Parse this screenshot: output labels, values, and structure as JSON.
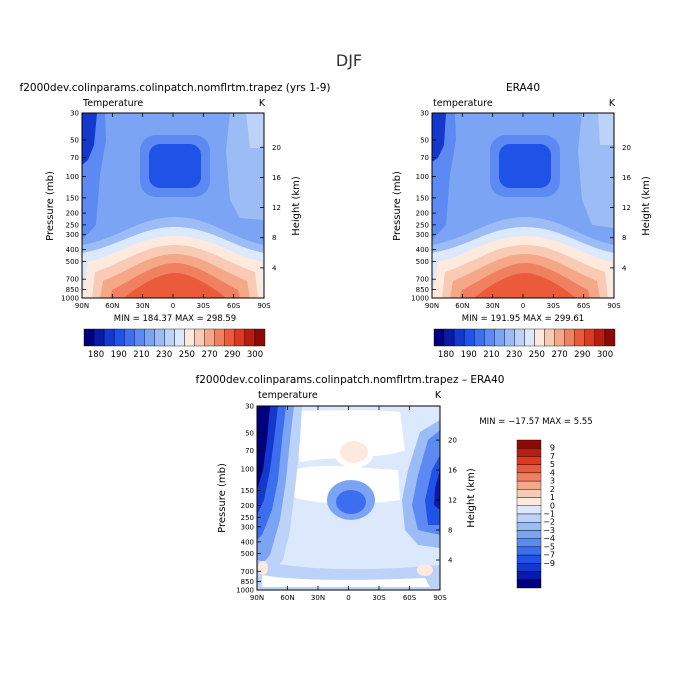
{
  "figure": {
    "supertitle": "DJF"
  },
  "palette_abs": [
    "#00007e",
    "#0a1aa8",
    "#1437cc",
    "#1f52e6",
    "#3d6ef0",
    "#5d89f2",
    "#7ca4f4",
    "#9cbcf6",
    "#bcd2f9",
    "#dce8fc",
    "#fde9de",
    "#f9cbb4",
    "#f4a887",
    "#ef8060",
    "#ea5a3b",
    "#db3a22",
    "#b81e10",
    "#8c0a05"
  ],
  "palette_diff": [
    "#00007e",
    "#0a1aa8",
    "#1437cc",
    "#1f52e6",
    "#3d6ef0",
    "#5d89f2",
    "#7ca4f4",
    "#9cbcf6",
    "#bcd2f9",
    "#dce8fc",
    "#fde9de",
    "#f9cbb4",
    "#f4a887",
    "#ef8060",
    "#ea5a3b",
    "#db3a22",
    "#b81e10",
    "#8c0a05"
  ],
  "chart_data": [
    {
      "type": "heatmap",
      "title": "f2000dev.colinparams.colinpatch.nomflrtm.trapez (yrs 1-9)",
      "field_label": "Temperature",
      "units": "K",
      "ylabel": "Pressure (mb)",
      "ylabel_right": "Height (km)",
      "x_ticks": [
        "90N",
        "60N",
        "30N",
        "0",
        "30S",
        "60S",
        "90S"
      ],
      "y_ticks": [
        "30",
        "50",
        "70",
        "100",
        "150",
        "200",
        "250",
        "300",
        "400",
        "500",
        "700",
        "850",
        "1000"
      ],
      "height_ticks": [
        "4",
        "8",
        "12",
        "16",
        "20"
      ],
      "min_max_text": "MIN = 184.37   MAX = 298.59",
      "min": 184.37,
      "max": 298.59,
      "colorbar_labels": [
        "180",
        "190",
        "210",
        "230",
        "250",
        "270",
        "290",
        "300"
      ]
    },
    {
      "type": "heatmap",
      "title": "ERA40",
      "field_label": "temperature",
      "units": "K",
      "ylabel": "Pressure (mb)",
      "ylabel_right": "Height (km)",
      "x_ticks": [
        "90N",
        "60N",
        "30N",
        "0",
        "30S",
        "60S",
        "90S"
      ],
      "y_ticks": [
        "30",
        "50",
        "70",
        "100",
        "150",
        "200",
        "250",
        "300",
        "400",
        "500",
        "700",
        "850",
        "1000"
      ],
      "height_ticks": [
        "4",
        "8",
        "12",
        "16",
        "20"
      ],
      "min_max_text": "MIN = 191.95   MAX = 299.61",
      "min": 191.95,
      "max": 299.61,
      "colorbar_labels": [
        "180",
        "190",
        "210",
        "230",
        "250",
        "270",
        "290",
        "300"
      ]
    },
    {
      "type": "heatmap",
      "title": "f2000dev.colinparams.colinpatch.nomflrtm.trapez – ERA40",
      "field_label": "temperature",
      "units": "K",
      "ylabel": "Pressure (mb)",
      "ylabel_right": "Height (km)",
      "x_ticks": [
        "90N",
        "60N",
        "30N",
        "0",
        "30S",
        "60S",
        "90S"
      ],
      "y_ticks": [
        "30",
        "50",
        "70",
        "100",
        "150",
        "200",
        "250",
        "300",
        "400",
        "500",
        "700",
        "850",
        "1000"
      ],
      "height_ticks": [
        "4",
        "8",
        "12",
        "16",
        "20"
      ],
      "min_max_text": "MIN = −17.57   MAX =   5.55",
      "min": -17.57,
      "max": 5.55,
      "colorbar_labels": [
        "9",
        "7",
        "5",
        "4",
        "3",
        "2",
        "1",
        "0",
        "−1",
        "−2",
        "−3",
        "−4",
        "−5",
        "−7",
        "−9"
      ]
    }
  ]
}
